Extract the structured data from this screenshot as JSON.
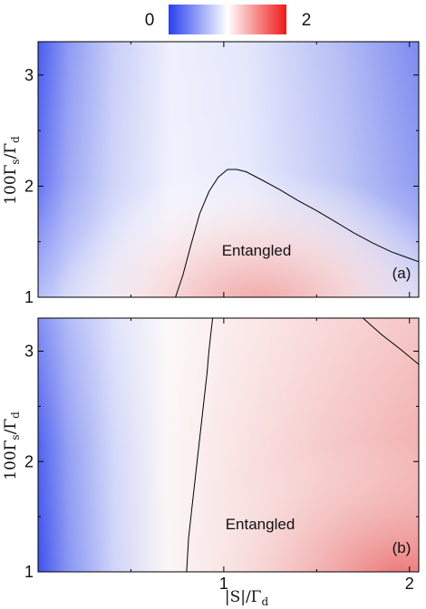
{
  "colorbar": {
    "min_label": "0",
    "max_label": "2",
    "colors": [
      "#2a3ff0",
      "#ffffff",
      "#f01818"
    ]
  },
  "chart_data": [
    {
      "type": "heatmap",
      "panel_label": "(a)",
      "annotation": "Entangled",
      "xlabel": "",
      "ylabel": "100Γs/Γd",
      "x_ticks": [
        "1",
        "2"
      ],
      "y_ticks": [
        "1",
        "2",
        "3"
      ],
      "xlim": [
        0.0,
        2.05
      ],
      "ylim": [
        1.0,
        3.3
      ],
      "color_range": [
        0,
        2
      ],
      "contour_level": 1,
      "contour": {
        "x": [
          0.74,
          0.78,
          0.82,
          0.87,
          0.92,
          0.97,
          1.02,
          1.07,
          1.12,
          1.2,
          1.3,
          1.4,
          1.5,
          1.6,
          1.7,
          1.8,
          1.9,
          2.0,
          2.05
        ],
        "y": [
          1.0,
          1.2,
          1.45,
          1.75,
          1.95,
          2.08,
          2.15,
          2.15,
          2.13,
          2.06,
          1.97,
          1.87,
          1.78,
          1.68,
          1.58,
          1.49,
          1.41,
          1.35,
          1.32
        ]
      }
    },
    {
      "type": "heatmap",
      "panel_label": "(b)",
      "annotation": "Entangled",
      "xlabel": "|S|/Γd",
      "ylabel": "100Γs/Γd",
      "x_ticks": [
        "1",
        "2"
      ],
      "y_ticks": [
        "1",
        "2",
        "3"
      ],
      "xlim": [
        0.0,
        2.05
      ],
      "ylim": [
        1.0,
        3.3
      ],
      "color_range": [
        0,
        2
      ],
      "contour_level": 1,
      "contour": [
        {
          "x": [
            0.8,
            0.81,
            0.83,
            0.85,
            0.87,
            0.89,
            0.91,
            0.92,
            0.93,
            0.94
          ],
          "y": [
            1.0,
            1.3,
            1.6,
            1.9,
            2.2,
            2.5,
            2.8,
            3.0,
            3.15,
            3.3
          ]
        },
        {
          "x": [
            1.75,
            1.85,
            1.95,
            2.05
          ],
          "y": [
            3.3,
            3.15,
            3.02,
            2.88
          ]
        }
      ]
    }
  ]
}
